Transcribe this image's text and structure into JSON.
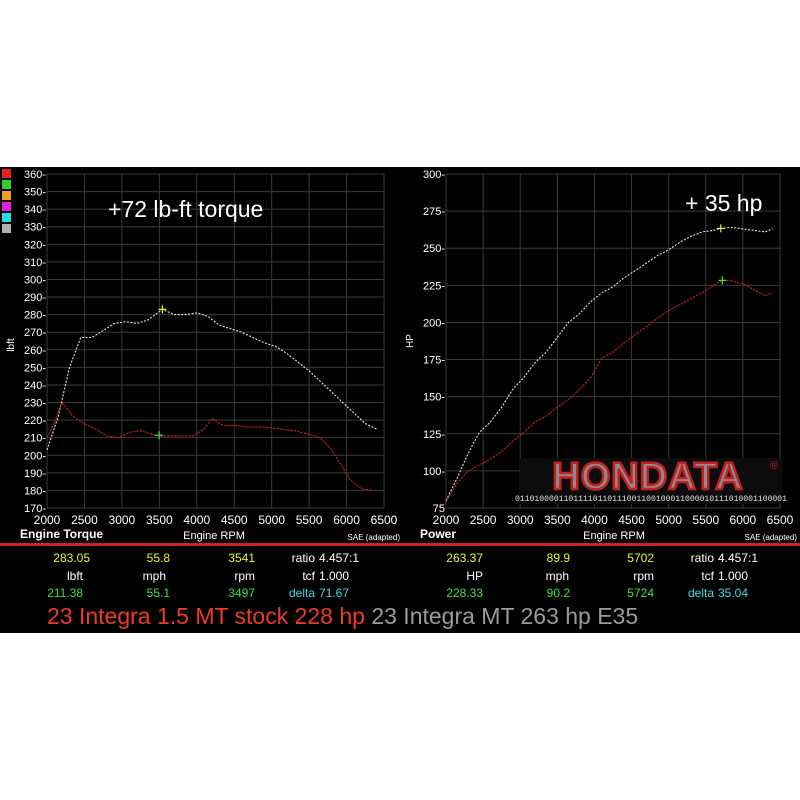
{
  "charts": {
    "torque": {
      "ylabel": "lbft",
      "xlabel": "Engine RPM",
      "title": "Engine Torque",
      "annotation": "+72 lb-ft torque",
      "correction": "SAE (adapted)"
    },
    "power": {
      "ylabel": "HP",
      "xlabel": "Engine RPM",
      "title": "Power",
      "annotation": "+ 35 hp",
      "correction": "SAE (adapted)"
    }
  },
  "colors": {
    "run_a": "#ee3b24",
    "run_b": "#9b9b9b",
    "curve_a": "#c81d1d",
    "curve_b": "#e6e6e6",
    "cursor_a": "#3fe43f",
    "cursor_b": "#f2f22a",
    "grid": "#3a3a3a",
    "divider": "#d42020"
  },
  "swatch_colors": [
    "#e82020",
    "#2fd02f",
    "#f0a020",
    "#e020e0",
    "#20e0e0",
    "#b0b0b0"
  ],
  "chart_data": [
    {
      "type": "line",
      "xlabel": "Engine RPM",
      "ylabel": "lbft",
      "xlim": [
        2000,
        6500
      ],
      "ylim": [
        170,
        360
      ],
      "xticks": [
        "2000",
        "2500",
        "3000",
        "3500",
        "4000",
        "4500",
        "5000",
        "5500",
        "6000",
        "6500"
      ],
      "yticks": [
        "170-",
        "180-",
        "190-",
        "200-",
        "210-",
        "220-",
        "230-",
        "240-",
        "250-",
        "260-",
        "270-",
        "280-",
        "290-",
        "300-",
        "310-",
        "320-",
        "330-",
        "340-",
        "350-",
        "360-"
      ],
      "series": [
        {
          "name": "23 Integra MT 263 hp E35",
          "x": [
            2000,
            2150,
            2300,
            2450,
            2600,
            2750,
            2900,
            3050,
            3200,
            3350,
            3541,
            3700,
            3850,
            4000,
            4150,
            4300,
            4450,
            4600,
            4750,
            4900,
            5050,
            5200,
            5350,
            5500,
            5650,
            5800,
            5950,
            6100,
            6250,
            6400
          ],
          "y": [
            203,
            222,
            250,
            267,
            267,
            271,
            275,
            276,
            275,
            277,
            283,
            280,
            280,
            281,
            279,
            274,
            272,
            270,
            267,
            264,
            262,
            258,
            253,
            248,
            242,
            236,
            230,
            224,
            218,
            215
          ]
        },
        {
          "name": "23 Integra 1.5 MT stock 228 hp",
          "x": [
            2000,
            2100,
            2200,
            2350,
            2500,
            2650,
            2800,
            2950,
            3100,
            3250,
            3400,
            3497,
            3650,
            3800,
            3950,
            4100,
            4200,
            4350,
            4500,
            4700,
            4900,
            5100,
            5300,
            5500,
            5650,
            5800,
            5950,
            6050,
            6200,
            6350
          ],
          "y": [
            210,
            219,
            230,
            222,
            218,
            215,
            211,
            210,
            213,
            214,
            212,
            211,
            211,
            211,
            211,
            215,
            221,
            217,
            217,
            216,
            216,
            215,
            214,
            212,
            210,
            203,
            193,
            186,
            181,
            180
          ]
        }
      ],
      "cursors": [
        {
          "series": "23 Integra MT 263 hp E35",
          "x": 3541,
          "y": 283.05,
          "mph": "55.8"
        },
        {
          "series": "23 Integra 1.5 MT stock 228 hp",
          "x": 3497,
          "y": 211.38,
          "mph": "55.1"
        }
      ],
      "readout": {
        "a": {
          "value": "283.05",
          "mph": "55.8",
          "rpm": "3541"
        },
        "units": {
          "value": "lbft",
          "mph": "mph",
          "rpm": "rpm"
        },
        "b": {
          "value": "211.38",
          "mph": "55.1",
          "rpm": "3497"
        },
        "ratio_label": "ratio",
        "ratio": "4.457:1",
        "tcf_label": "tcf",
        "tcf": "1.000",
        "delta_label": "delta",
        "delta": "71.67"
      }
    },
    {
      "type": "line",
      "xlabel": "Engine RPM",
      "ylabel": "HP",
      "xlim": [
        2000,
        6500
      ],
      "ylim": [
        75,
        300
      ],
      "xticks": [
        "2000",
        "2500",
        "3000",
        "3500",
        "4000",
        "4500",
        "5000",
        "5500",
        "6000",
        "6500"
      ],
      "yticks": [
        "75",
        "100-",
        "125-",
        "150-",
        "175-",
        "200-",
        "225-",
        "250-",
        "275-",
        "300-"
      ],
      "series": [
        {
          "name": "23 Integra MT 263 hp E35",
          "x": [
            2000,
            2150,
            2300,
            2450,
            2600,
            2750,
            2900,
            3050,
            3200,
            3350,
            3500,
            3650,
            3800,
            3950,
            4100,
            4250,
            4400,
            4550,
            4700,
            4850,
            5000,
            5150,
            5300,
            5450,
            5600,
            5702,
            5850,
            6000,
            6150,
            6300,
            6400
          ],
          "y": [
            80,
            95,
            112,
            126,
            133,
            143,
            155,
            163,
            173,
            180,
            190,
            200,
            206,
            214,
            220,
            224,
            230,
            235,
            240,
            245,
            249,
            254,
            258,
            261,
            262,
            263.37,
            264,
            263,
            262,
            261,
            263
          ]
        },
        {
          "name": "23 Integra 1.5 MT stock 228 hp",
          "x": [
            2000,
            2150,
            2300,
            2450,
            2600,
            2750,
            2900,
            3050,
            3200,
            3350,
            3500,
            3650,
            3800,
            3950,
            4100,
            4250,
            4400,
            4550,
            4700,
            4850,
            5000,
            5150,
            5300,
            5450,
            5600,
            5724,
            5850,
            6000,
            6150,
            6300,
            6400
          ],
          "y": [
            79,
            92,
            100,
            104,
            108,
            113,
            120,
            126,
            133,
            137,
            143,
            148,
            155,
            163,
            176,
            180,
            186,
            192,
            197,
            203,
            208,
            212,
            216,
            220,
            225,
            228.33,
            228,
            226,
            222,
            218,
            220
          ]
        }
      ],
      "cursors": [
        {
          "series": "23 Integra MT 263 hp E35",
          "x": 5702,
          "y": 263.37,
          "mph": "89.9"
        },
        {
          "series": "23 Integra 1.5 MT stock 228 hp",
          "x": 5724,
          "y": 228.33,
          "mph": "90.2"
        }
      ],
      "readout": {
        "a": {
          "value": "263.37",
          "mph": "89.9",
          "rpm": "5702"
        },
        "units": {
          "value": "HP",
          "mph": "mph",
          "rpm": "rpm"
        },
        "b": {
          "value": "228.33",
          "mph": "90.2",
          "rpm": "5724"
        },
        "ratio_label": "ratio",
        "ratio": "4.457:1",
        "tcf_label": "tcf",
        "tcf": "1.000",
        "delta_label": "delta",
        "delta": "35.04"
      }
    }
  ],
  "legend": {
    "run_a": "23 Integra 1.5 MT stock 228 hp",
    "run_b": "23 Integra MT 263 hp E35"
  },
  "logo": {
    "text": "HONDATA",
    "registered": "®",
    "binary": "01101000011011110110111001100100011000010111010001100001"
  }
}
